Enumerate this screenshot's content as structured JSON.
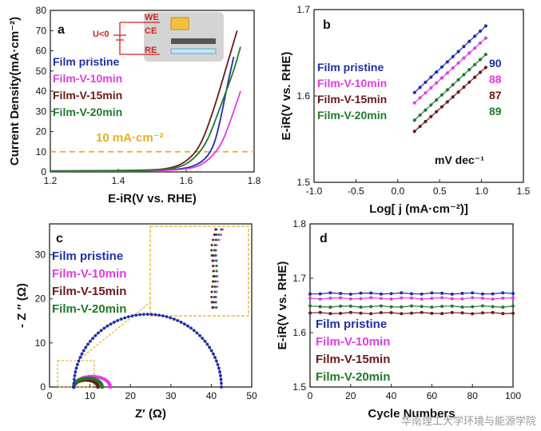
{
  "colors": {
    "pristine": "#1f2fa8",
    "v10": "#e23ce0",
    "v15": "#6b1a1a",
    "v20": "#1f7a2a",
    "ref_line": "#e8b020",
    "axis": "#222222",
    "label_red": "#d42020"
  },
  "chart_data": [
    {
      "id": "a",
      "type": "line",
      "panel_label": "a",
      "xlabel": "E-iR(V vs. RHE)",
      "ylabel": "Current Density(mA·cm⁻²)",
      "xlim": [
        1.2,
        1.8
      ],
      "ylim": [
        0,
        80
      ],
      "xticks": [
        "1.2",
        "1.4",
        "1.6",
        "1.8"
      ],
      "yticks": [
        "0",
        "10",
        "20",
        "30",
        "40",
        "50",
        "60",
        "70",
        "80"
      ],
      "reference_line": {
        "y": 10,
        "label": "10 mA·cm⁻²"
      },
      "inset": {
        "labels": [
          "WE",
          "CE",
          "RE"
        ],
        "bias": "U<0"
      },
      "series": [
        {
          "name": "Film pristine",
          "color_key": "pristine",
          "points": [
            [
              1.2,
              0.3
            ],
            [
              1.5,
              0.6
            ],
            [
              1.6,
              1.5
            ],
            [
              1.65,
              5
            ],
            [
              1.68,
              12
            ],
            [
              1.7,
              25
            ],
            [
              1.72,
              42
            ],
            [
              1.74,
              57
            ]
          ]
        },
        {
          "name": "Film-V-10min",
          "color_key": "v10",
          "points": [
            [
              1.2,
              0.3
            ],
            [
              1.5,
              0.5
            ],
            [
              1.6,
              1.2
            ],
            [
              1.65,
              3.5
            ],
            [
              1.7,
              12
            ],
            [
              1.73,
              25
            ],
            [
              1.76,
              40
            ]
          ]
        },
        {
          "name": "Film-V-15min",
          "color_key": "v15",
          "points": [
            [
              1.2,
              0.5
            ],
            [
              1.5,
              0.8
            ],
            [
              1.56,
              2
            ],
            [
              1.6,
              5
            ],
            [
              1.64,
              12
            ],
            [
              1.68,
              30
            ],
            [
              1.72,
              53
            ],
            [
              1.75,
              70
            ]
          ]
        },
        {
          "name": "Film-V-20min",
          "color_key": "v20",
          "points": [
            [
              1.2,
              0.4
            ],
            [
              1.5,
              0.7
            ],
            [
              1.58,
              2
            ],
            [
              1.62,
              6
            ],
            [
              1.66,
              14
            ],
            [
              1.7,
              32
            ],
            [
              1.74,
              50
            ],
            [
              1.76,
              62
            ]
          ]
        }
      ]
    },
    {
      "id": "b",
      "type": "line",
      "panel_label": "b",
      "xlabel": "Log[ j (mA·cm⁻²)]",
      "ylabel": "E-iR(V vs. RHE)",
      "xlim": [
        -1.0,
        1.5
      ],
      "ylim": [
        1.5,
        1.7
      ],
      "xticks": [
        "-1.0",
        "-0.5",
        "0.0",
        "0.5",
        "1.0",
        "1.5"
      ],
      "yticks": [
        "1.5",
        "1.6",
        "1.7"
      ],
      "unit_label": "mV dec⁻¹",
      "series": [
        {
          "name": "Film pristine",
          "color_key": "pristine",
          "slope_label": "90",
          "points": [
            [
              0.2,
              1.604
            ],
            [
              1.05,
              1.681
            ]
          ]
        },
        {
          "name": "Film-V-10min",
          "color_key": "v10",
          "slope_label": "88",
          "points": [
            [
              0.2,
              1.592
            ],
            [
              1.05,
              1.667
            ]
          ]
        },
        {
          "name": "Film-V-15min",
          "color_key": "v15",
          "slope_label": "87",
          "points": [
            [
              0.2,
              1.559
            ],
            [
              1.05,
              1.633
            ]
          ]
        },
        {
          "name": "Film-V-20min",
          "color_key": "v20",
          "slope_label": "89",
          "points": [
            [
              0.2,
              1.572
            ],
            [
              1.05,
              1.648
            ]
          ]
        }
      ]
    },
    {
      "id": "c",
      "type": "scatter",
      "panel_label": "c",
      "xlabel": "Z′ (Ω)",
      "ylabel": "- Z ″ (Ω)",
      "xlim": [
        0,
        50
      ],
      "ylim": [
        0,
        37
      ],
      "xticks": [
        "0",
        "10",
        "20",
        "30",
        "40",
        "50"
      ],
      "yticks": [
        "0",
        "10",
        "20",
        "30"
      ],
      "series": [
        {
          "name": "Film pristine",
          "color_key": "pristine",
          "arc": {
            "r0": 6,
            "r1": 42.5,
            "peak": 16.5
          }
        },
        {
          "name": "Film-V-10min",
          "color_key": "v10",
          "arc": {
            "r0": 6,
            "r1": 15,
            "peak": 2.4
          }
        },
        {
          "name": "Film-V-15min",
          "color_key": "v15",
          "arc": {
            "r0": 6,
            "r1": 12,
            "peak": 1.6
          }
        },
        {
          "name": "Film-V-20min",
          "color_key": "v20",
          "arc": {
            "r0": 6,
            "r1": 13,
            "peak": 2.0
          }
        }
      ]
    },
    {
      "id": "d",
      "type": "line",
      "panel_label": "d",
      "xlabel": "Cycle Numbers",
      "ylabel": "E-iR(V vs. RHE)",
      "xlim": [
        0,
        100
      ],
      "ylim": [
        1.5,
        1.8
      ],
      "xticks": [
        "0",
        "20",
        "40",
        "60",
        "80",
        "100"
      ],
      "yticks": [
        "1.5",
        "1.6",
        "1.7",
        "1.8"
      ],
      "series": [
        {
          "name": "Film pristine",
          "color_key": "pristine",
          "value": 1.672
        },
        {
          "name": "Film-V-10min",
          "color_key": "v10",
          "value": 1.663
        },
        {
          "name": "Film-V-15min",
          "color_key": "v15",
          "value": 1.636
        },
        {
          "name": "Film-V-20min",
          "color_key": "v20",
          "value": 1.648
        }
      ]
    }
  ],
  "watermark": "华南理工大学环境与能源学院"
}
